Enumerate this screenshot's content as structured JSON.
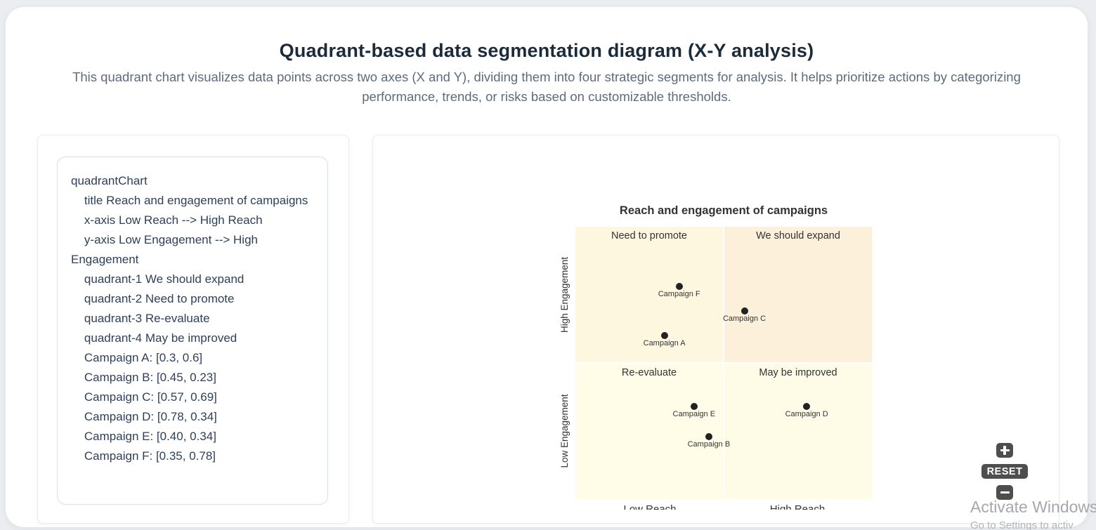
{
  "header": {
    "title": "Quadrant-based data segmentation diagram (X-Y analysis)",
    "subtitle": "This quadrant chart visualizes data points across two axes (X and Y), dividing them into four strategic segments for analysis. It helps prioritize actions by categorizing performance, trends, or risks based on customizable thresholds."
  },
  "code_panel": {
    "code": "quadrantChart\n    title Reach and engagement of campaigns\n    x-axis Low Reach --> High Reach\n    y-axis Low Engagement --> High Engagement\n    quadrant-1 We should expand\n    quadrant-2 Need to promote\n    quadrant-3 Re-evaluate\n    quadrant-4 May be improved\n    Campaign A: [0.3, 0.6]\n    Campaign B: [0.45, 0.23]\n    Campaign C: [0.57, 0.69]\n    Campaign D: [0.78, 0.34]\n    Campaign E: [0.40, 0.34]\n    Campaign F: [0.35, 0.78]"
  },
  "chart_data": {
    "type": "scatter",
    "subtype": "quadrant",
    "title": "Reach and engagement of campaigns",
    "x_axis": {
      "left_label": "Low Reach",
      "right_label": "High Reach"
    },
    "y_axis": {
      "top_label": "High Engagement",
      "bottom_label": "Low Engagement"
    },
    "xlim": [
      0,
      1
    ],
    "ylim": [
      0,
      1
    ],
    "grid": false,
    "quadrants": [
      {
        "id": "quadrant-1",
        "position": "top-right",
        "label": "We should expand",
        "fill": "#fcf0da"
      },
      {
        "id": "quadrant-2",
        "position": "top-left",
        "label": "Need to promote",
        "fill": "#fdf7e0"
      },
      {
        "id": "quadrant-3",
        "position": "bottom-left",
        "label": "Re-evaluate",
        "fill": "#fffde8"
      },
      {
        "id": "quadrant-4",
        "position": "bottom-right",
        "label": "May be improved",
        "fill": "#fefce6"
      }
    ],
    "points": [
      {
        "name": "Campaign A",
        "x": 0.3,
        "y": 0.6
      },
      {
        "name": "Campaign B",
        "x": 0.45,
        "y": 0.23
      },
      {
        "name": "Campaign C",
        "x": 0.57,
        "y": 0.69
      },
      {
        "name": "Campaign D",
        "x": 0.78,
        "y": 0.34
      },
      {
        "name": "Campaign E",
        "x": 0.4,
        "y": 0.34
      },
      {
        "name": "Campaign F",
        "x": 0.35,
        "y": 0.78
      }
    ],
    "point_color": "#222222"
  },
  "zoom_controls": {
    "zoom_in_icon": "plus-icon",
    "reset_label": "RESET",
    "zoom_out_icon": "minus-icon",
    "button_color": "#4e4e4e"
  },
  "watermark": {
    "line1": "Activate Windows",
    "line2": "Go to Settings to activ"
  },
  "colors": {
    "page_background": "#ebedf1",
    "panel_background": "#ffffff",
    "title_text": "#1c2b3a",
    "subtitle_text": "#5d6b7c",
    "code_text": "#2f4058",
    "chart_text": "#333333"
  }
}
